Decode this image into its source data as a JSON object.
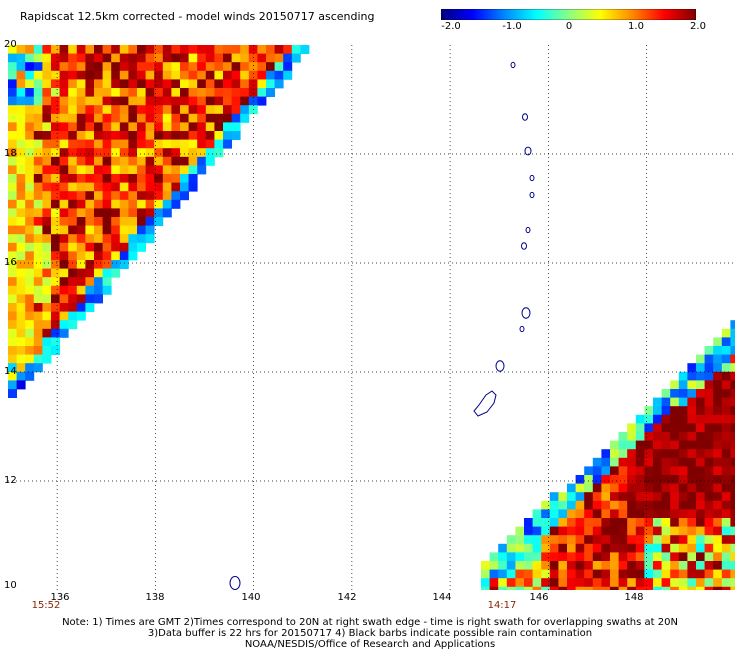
{
  "header": {
    "title": "Rapidscat 12.5km corrected - model winds 20150717 ascending"
  },
  "colorbar": {
    "labels": [
      "-2.0",
      "-1.0",
      "0",
      "1.0",
      "2.0"
    ],
    "min": -2.0,
    "max": 2.0,
    "stops": [
      "#00007f",
      "#0000ff",
      "#0088ff",
      "#00ffff",
      "#88ff88",
      "#ffff00",
      "#ff8800",
      "#ff0000",
      "#800000"
    ]
  },
  "map": {
    "y_labels": [
      "20",
      "18",
      "16",
      "14",
      "12",
      "10"
    ],
    "x_labels": [
      "136",
      "138",
      "140",
      "142",
      "144",
      "146",
      "148"
    ],
    "swath_times": [
      "15:52",
      "14:17"
    ],
    "coast_color": "#00008b",
    "lat_range": [
      10,
      20
    ],
    "lon_range": [
      135,
      149.8
    ]
  },
  "footer": {
    "line1": "Note: 1) Times are GMT 2)Times correspond to 20N at right swath edge - time is right swath for overlapping swaths at 20N",
    "line2": "3)Data buffer is 22 hrs for 20150717 4) Black barbs indicate possible rain contamination",
    "line3": "NOAA/NESDIS/Office of Research and Applications"
  }
}
